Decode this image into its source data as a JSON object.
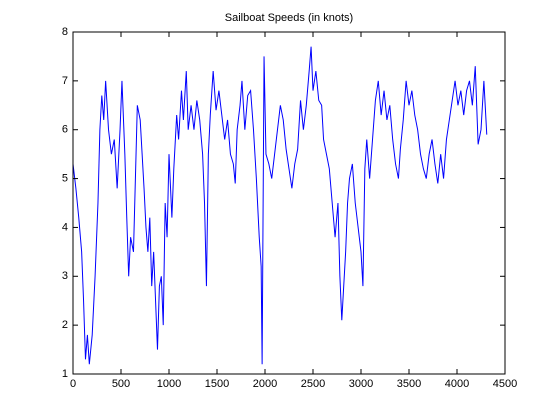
{
  "chart_data": {
    "type": "line",
    "title": "Sailboat Speeds (in knots)",
    "x": [
      0,
      30,
      60,
      90,
      110,
      130,
      150,
      170,
      200,
      230,
      260,
      280,
      300,
      320,
      340,
      370,
      400,
      430,
      460,
      490,
      510,
      540,
      560,
      580,
      600,
      630,
      650,
      670,
      700,
      720,
      740,
      760,
      780,
      800,
      820,
      840,
      860,
      880,
      900,
      920,
      940,
      960,
      980,
      1000,
      1030,
      1050,
      1080,
      1100,
      1130,
      1150,
      1180,
      1200,
      1230,
      1260,
      1290,
      1320,
      1350,
      1370,
      1390,
      1410,
      1430,
      1460,
      1490,
      1520,
      1550,
      1580,
      1610,
      1640,
      1670,
      1690,
      1710,
      1740,
      1760,
      1790,
      1820,
      1850,
      1880,
      1910,
      1940,
      1960,
      1970,
      1990,
      2010,
      2040,
      2070,
      2100,
      2130,
      2160,
      2190,
      2220,
      2250,
      2280,
      2310,
      2340,
      2370,
      2400,
      2430,
      2460,
      2480,
      2500,
      2530,
      2560,
      2590,
      2610,
      2640,
      2670,
      2700,
      2730,
      2760,
      2780,
      2800,
      2820,
      2840,
      2860,
      2880,
      2910,
      2940,
      2970,
      3000,
      3020,
      3040,
      3060,
      3090,
      3120,
      3150,
      3180,
      3210,
      3240,
      3270,
      3300,
      3330,
      3360,
      3390,
      3410,
      3440,
      3470,
      3500,
      3530,
      3560,
      3590,
      3620,
      3650,
      3680,
      3710,
      3740,
      3770,
      3800,
      3830,
      3860,
      3890,
      3920,
      3950,
      3980,
      4010,
      4040,
      4070,
      4100,
      4130,
      4160,
      4190,
      4220,
      4250,
      4280,
      4310
    ],
    "series": [
      {
        "color": "#0000ff",
        "values": [
          5.3,
          4.8,
          4.2,
          3.5,
          2.5,
          1.3,
          1.8,
          1.2,
          1.8,
          3.0,
          4.5,
          6.0,
          6.7,
          6.2,
          7.0,
          6.0,
          5.5,
          5.8,
          4.8,
          6.0,
          7.0,
          5.5,
          4.2,
          3.0,
          3.8,
          3.5,
          5.0,
          6.5,
          6.2,
          5.5,
          4.8,
          4.0,
          3.5,
          4.2,
          2.8,
          3.5,
          2.5,
          1.5,
          2.8,
          3.0,
          2.0,
          4.5,
          3.8,
          5.5,
          4.2,
          5.2,
          6.3,
          5.8,
          6.8,
          6.2,
          7.2,
          6.0,
          6.5,
          6.0,
          6.6,
          6.2,
          5.5,
          4.5,
          2.8,
          5.5,
          6.3,
          7.2,
          6.4,
          6.8,
          6.3,
          5.8,
          6.2,
          5.5,
          5.3,
          4.9,
          6.0,
          6.5,
          7.0,
          6.0,
          6.7,
          6.8,
          6.0,
          5.0,
          3.8,
          3.2,
          1.2,
          7.5,
          5.5,
          5.3,
          5.0,
          5.5,
          6.0,
          6.5,
          6.2,
          5.6,
          5.2,
          4.8,
          5.3,
          5.6,
          6.6,
          6.0,
          6.5,
          7.2,
          7.7,
          6.8,
          7.2,
          6.6,
          6.5,
          5.8,
          5.5,
          5.2,
          4.5,
          3.8,
          4.5,
          3.0,
          2.1,
          2.8,
          3.5,
          4.5,
          5.0,
          5.3,
          4.5,
          4.0,
          3.5,
          2.8,
          5.2,
          5.8,
          5.0,
          5.8,
          6.6,
          7.0,
          6.3,
          6.8,
          6.2,
          6.5,
          5.8,
          5.3,
          5.0,
          5.6,
          6.2,
          7.0,
          6.5,
          6.8,
          6.3,
          6.0,
          5.5,
          5.2,
          5.0,
          5.5,
          5.8,
          5.3,
          4.9,
          5.5,
          5.0,
          5.8,
          6.2,
          6.6,
          7.0,
          6.5,
          6.8,
          6.3,
          6.8,
          7.0,
          6.5,
          7.3,
          5.7,
          6.0,
          7.0,
          5.9
        ]
      }
    ],
    "xlim": [
      0,
      4500
    ],
    "xticks": [
      0,
      500,
      1000,
      1500,
      2000,
      2500,
      3000,
      3500,
      4000,
      4500
    ],
    "ylim": [
      1,
      8
    ],
    "yticks": [
      1,
      2,
      3,
      4,
      5,
      6,
      7,
      8
    ]
  }
}
